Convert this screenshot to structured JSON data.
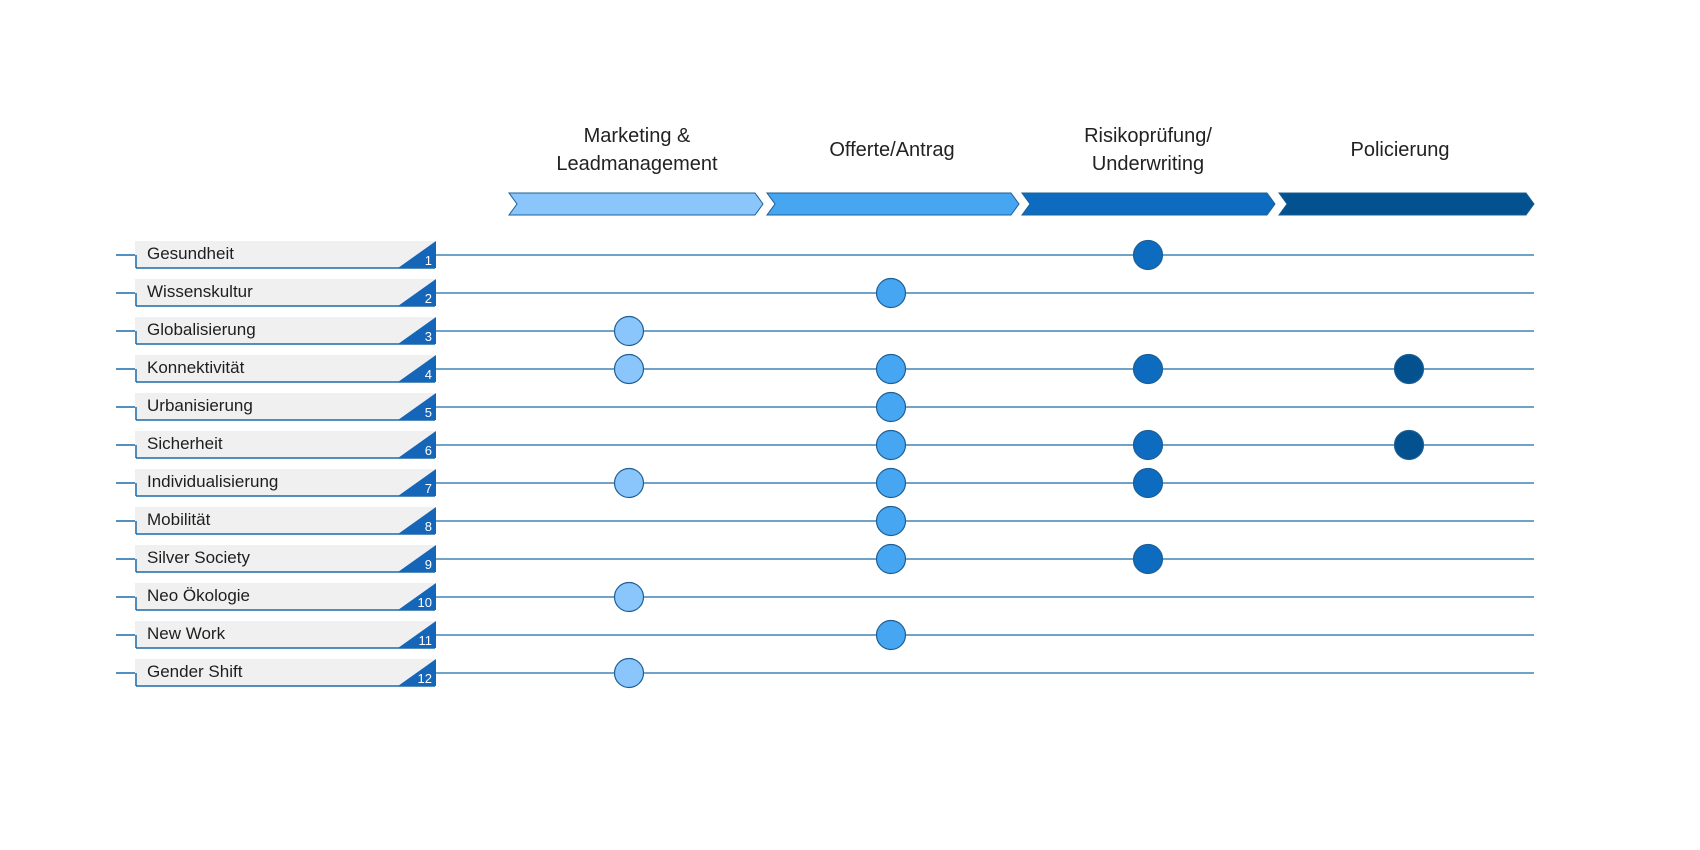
{
  "phases": [
    {
      "label": "Marketing &\nLeadmanagement",
      "color": "#8ac6fb"
    },
    {
      "label": "Offerte/Antrag",
      "color": "#47a6f1"
    },
    {
      "label": "Risikoprüfung/\nUnderwriting",
      "color": "#0d6cbf"
    },
    {
      "label": "Policierung",
      "color": "#03518f"
    }
  ],
  "trends": [
    {
      "number": "1",
      "label": "Gesundheit",
      "phases": [
        3
      ]
    },
    {
      "number": "2",
      "label": "Wissenskultur",
      "phases": [
        2
      ]
    },
    {
      "number": "3",
      "label": "Globalisierung",
      "phases": [
        1
      ]
    },
    {
      "number": "4",
      "label": "Konnektivität",
      "phases": [
        1,
        2,
        3,
        4
      ]
    },
    {
      "number": "5",
      "label": "Urbanisierung",
      "phases": [
        2
      ]
    },
    {
      "number": "6",
      "label": "Sicherheit",
      "phases": [
        2,
        3,
        4
      ]
    },
    {
      "number": "7",
      "label": "Individualisierung",
      "phases": [
        1,
        2,
        3
      ]
    },
    {
      "number": "8",
      "label": "Mobilität",
      "phases": [
        2
      ]
    },
    {
      "number": "9",
      "label": "Silver Society",
      "phases": [
        2,
        3
      ]
    },
    {
      "number": "10",
      "label": "Neo Ökologie",
      "phases": [
        1
      ]
    },
    {
      "number": "11",
      "label": "New Work",
      "phases": [
        2
      ]
    },
    {
      "number": "12",
      "label": "Gender Shift",
      "phases": [
        1
      ]
    }
  ],
  "colors": {
    "line": "#1c6aa8",
    "label_box": "#f0f0f0",
    "number_badge": "#1565b8",
    "dot_stroke": "#1d5f96"
  }
}
